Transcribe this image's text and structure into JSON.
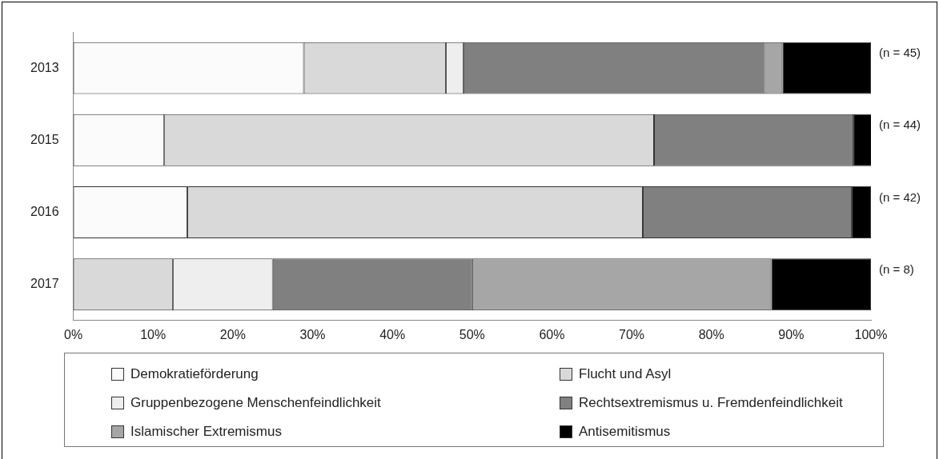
{
  "chart_data": {
    "type": "bar",
    "orientation": "horizontal",
    "stacked": true,
    "categories": [
      "2013",
      "2015",
      "2016",
      "2017"
    ],
    "series": [
      {
        "name": "Demokratieförderung",
        "color": "#fbfbfb",
        "values": [
          28.9,
          11.4,
          14.3,
          null
        ]
      },
      {
        "name": "Flucht und Asyl",
        "color": "#d9d9d9",
        "values": [
          17.8,
          61.4,
          57.1,
          12.5
        ]
      },
      {
        "name": "Gruppenbezogene Menschenfeindlichkeit",
        "color": "#eeeeee",
        "values": [
          2.2,
          null,
          null,
          12.5
        ]
      },
      {
        "name": "Rechtsextremismus u. Fremdenfeindlichkeit",
        "color": "#808080",
        "values": [
          37.8,
          25.0,
          26.2,
          25.0
        ]
      },
      {
        "name": "Islamischer Extremismus",
        "color": "#a6a6a6",
        "values": [
          2.2,
          null,
          null,
          37.5
        ]
      },
      {
        "name": "Antisemitismus",
        "color": "#000000",
        "values": [
          11.1,
          2.3,
          2.4,
          12.5
        ]
      }
    ],
    "xlim": [
      0,
      100
    ],
    "xticks": [
      {
        "value": 0,
        "label": "0%"
      },
      {
        "value": 10,
        "label": "10%"
      },
      {
        "value": 20,
        "label": "20%"
      },
      {
        "value": 30,
        "label": "30%"
      },
      {
        "value": 40,
        "label": "40%"
      },
      {
        "value": 50,
        "label": "50%"
      },
      {
        "value": 60,
        "label": "60%"
      },
      {
        "value": 70,
        "label": "70%"
      },
      {
        "value": 80,
        "label": "80%"
      },
      {
        "value": 90,
        "label": "90%"
      },
      {
        "value": 100,
        "label": "100%"
      }
    ],
    "annotations": [
      "(n = 45)",
      "(n = 44)",
      "(n = 42)",
      "(n = 8)"
    ],
    "grid": false,
    "legend": "bottom"
  }
}
